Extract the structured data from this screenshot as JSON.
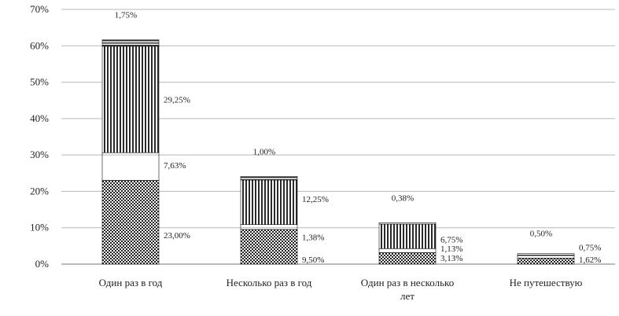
{
  "chart_data": {
    "type": "bar",
    "stacked": true,
    "categories": [
      "Один раз в год",
      "Несколько раз в год",
      "Один раз в несколько лет",
      "Не путешествую"
    ],
    "series": [
      {
        "values": [
          23.0,
          9.5,
          3.13,
          1.62
        ],
        "labels": [
          "23,00%",
          "9,50%",
          "3,13%",
          "1,62%"
        ],
        "pattern": "checker"
      },
      {
        "values": [
          7.63,
          1.38,
          1.13,
          0.75
        ],
        "labels": [
          "7,63%",
          "1,38%",
          "1,13%",
          "0,75%"
        ],
        "pattern": "solid"
      },
      {
        "values": [
          29.25,
          12.25,
          6.75,
          0
        ],
        "labels": [
          "29,25%",
          "12,25%",
          "6,75%",
          ""
        ],
        "pattern": "vertical-stripes"
      },
      {
        "values": [
          1.75,
          1.0,
          0.38,
          0.5
        ],
        "labels": [
          "1,75%",
          "1,00%",
          "0,38%",
          "0,50%"
        ],
        "pattern": "horizontal-stripes"
      }
    ],
    "ylim": [
      0,
      70
    ],
    "yticks": [
      "0%",
      "10%",
      "20%",
      "30%",
      "40%",
      "50%",
      "60%",
      "70%"
    ],
    "grid": true,
    "legend": "none",
    "title": "",
    "xlabel": "",
    "ylabel": ""
  }
}
